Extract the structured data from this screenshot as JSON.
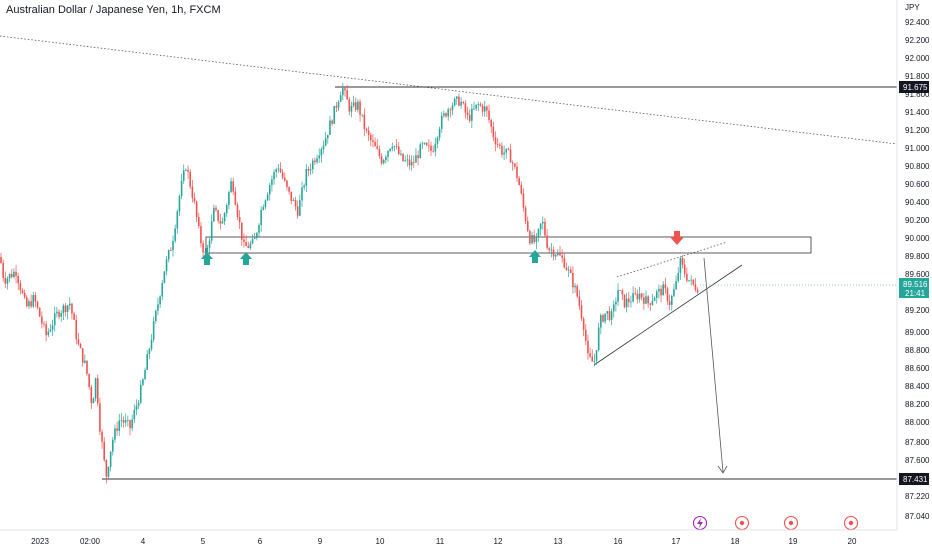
{
  "title": "Australian Dollar / Japanese Yen, 1h, FXCM",
  "chart_data": {
    "type": "candlestick",
    "symbol": "Australian Dollar / Japanese Yen",
    "interval": "1h",
    "source": "FXCM",
    "currency_label": "JPY",
    "ylim": [
      86.94,
      92.52
    ],
    "y_ticks": [
      "92.400",
      "92.200",
      "92.000",
      "91.800",
      "91.600",
      "91.400",
      "91.200",
      "91.000",
      "90.800",
      "90.600",
      "90.400",
      "90.200",
      "90.000",
      "89.800",
      "89.600",
      "89.400",
      "89.200",
      "89.000",
      "88.800",
      "88.600",
      "88.400",
      "88.200",
      "88.000",
      "87.800",
      "87.600",
      "87.400",
      "87.220",
      "87.040"
    ],
    "x_ticks": [
      "2023",
      "02:00",
      "4",
      "5",
      "6",
      "9",
      "10",
      "11",
      "12",
      "13",
      "16",
      "17",
      "18",
      "19",
      "20"
    ],
    "price_labels": {
      "resistance": "91.675",
      "last_price": "89.516",
      "countdown": "21:41",
      "support": "87.431"
    },
    "colors": {
      "up": "#26a69a",
      "down": "#ef5350",
      "last": "#26a69a",
      "marker_down": "#ef5350",
      "marker_up": "#26a69a"
    },
    "anchors": [
      {
        "x": 0,
        "v": 89.85
      },
      {
        "x": 4,
        "v": 89.6
      },
      {
        "x": 16,
        "v": 89.7
      },
      {
        "x": 26,
        "v": 89.3
      },
      {
        "x": 34,
        "v": 89.4
      },
      {
        "x": 46,
        "v": 89.0
      },
      {
        "x": 58,
        "v": 89.25
      },
      {
        "x": 70,
        "v": 89.35
      },
      {
        "x": 78,
        "v": 88.9
      },
      {
        "x": 86,
        "v": 88.65
      },
      {
        "x": 92,
        "v": 88.25
      },
      {
        "x": 96,
        "v": 88.55
      },
      {
        "x": 100,
        "v": 88.0
      },
      {
        "x": 106,
        "v": 87.46
      },
      {
        "x": 112,
        "v": 87.85
      },
      {
        "x": 120,
        "v": 88.1
      },
      {
        "x": 130,
        "v": 88.0
      },
      {
        "x": 142,
        "v": 88.45
      },
      {
        "x": 150,
        "v": 88.9
      },
      {
        "x": 158,
        "v": 89.35
      },
      {
        "x": 164,
        "v": 89.7
      },
      {
        "x": 172,
        "v": 90.0
      },
      {
        "x": 180,
        "v": 90.55
      },
      {
        "x": 186,
        "v": 90.85
      },
      {
        "x": 194,
        "v": 90.45
      },
      {
        "x": 200,
        "v": 90.05
      },
      {
        "x": 206,
        "v": 89.85
      },
      {
        "x": 214,
        "v": 90.35
      },
      {
        "x": 222,
        "v": 90.2
      },
      {
        "x": 232,
        "v": 90.7
      },
      {
        "x": 238,
        "v": 90.3
      },
      {
        "x": 244,
        "v": 89.95
      },
      {
        "x": 254,
        "v": 90.0
      },
      {
        "x": 262,
        "v": 90.4
      },
      {
        "x": 270,
        "v": 90.65
      },
      {
        "x": 278,
        "v": 90.85
      },
      {
        "x": 288,
        "v": 90.55
      },
      {
        "x": 298,
        "v": 90.35
      },
      {
        "x": 306,
        "v": 90.75
      },
      {
        "x": 316,
        "v": 90.95
      },
      {
        "x": 324,
        "v": 91.1
      },
      {
        "x": 332,
        "v": 91.35
      },
      {
        "x": 342,
        "v": 91.7
      },
      {
        "x": 350,
        "v": 91.45
      },
      {
        "x": 358,
        "v": 91.5
      },
      {
        "x": 366,
        "v": 91.2
      },
      {
        "x": 374,
        "v": 91.05
      },
      {
        "x": 382,
        "v": 90.9
      },
      {
        "x": 392,
        "v": 91.1
      },
      {
        "x": 402,
        "v": 90.9
      },
      {
        "x": 412,
        "v": 90.85
      },
      {
        "x": 422,
        "v": 91.05
      },
      {
        "x": 432,
        "v": 91.0
      },
      {
        "x": 440,
        "v": 91.3
      },
      {
        "x": 450,
        "v": 91.5
      },
      {
        "x": 460,
        "v": 91.55
      },
      {
        "x": 468,
        "v": 91.35
      },
      {
        "x": 478,
        "v": 91.5
      },
      {
        "x": 486,
        "v": 91.45
      },
      {
        "x": 494,
        "v": 91.15
      },
      {
        "x": 502,
        "v": 91.0
      },
      {
        "x": 510,
        "v": 90.95
      },
      {
        "x": 518,
        "v": 90.7
      },
      {
        "x": 524,
        "v": 90.35
      },
      {
        "x": 530,
        "v": 90.05
      },
      {
        "x": 536,
        "v": 90.0
      },
      {
        "x": 542,
        "v": 90.25
      },
      {
        "x": 548,
        "v": 89.95
      },
      {
        "x": 556,
        "v": 89.9
      },
      {
        "x": 564,
        "v": 89.8
      },
      {
        "x": 572,
        "v": 89.6
      },
      {
        "x": 578,
        "v": 89.4
      },
      {
        "x": 584,
        "v": 89.1
      },
      {
        "x": 588,
        "v": 88.75
      },
      {
        "x": 594,
        "v": 88.7
      },
      {
        "x": 600,
        "v": 89.15
      },
      {
        "x": 606,
        "v": 89.25
      },
      {
        "x": 612,
        "v": 89.2
      },
      {
        "x": 618,
        "v": 89.5
      },
      {
        "x": 624,
        "v": 89.35
      },
      {
        "x": 632,
        "v": 89.4
      },
      {
        "x": 640,
        "v": 89.45
      },
      {
        "x": 648,
        "v": 89.35
      },
      {
        "x": 656,
        "v": 89.45
      },
      {
        "x": 664,
        "v": 89.5
      },
      {
        "x": 670,
        "v": 89.35
      },
      {
        "x": 676,
        "v": 89.55
      },
      {
        "x": 680,
        "v": 89.8
      },
      {
        "x": 686,
        "v": 89.65
      },
      {
        "x": 692,
        "v": 89.55
      },
      {
        "x": 698,
        "v": 89.52
      }
    ]
  }
}
